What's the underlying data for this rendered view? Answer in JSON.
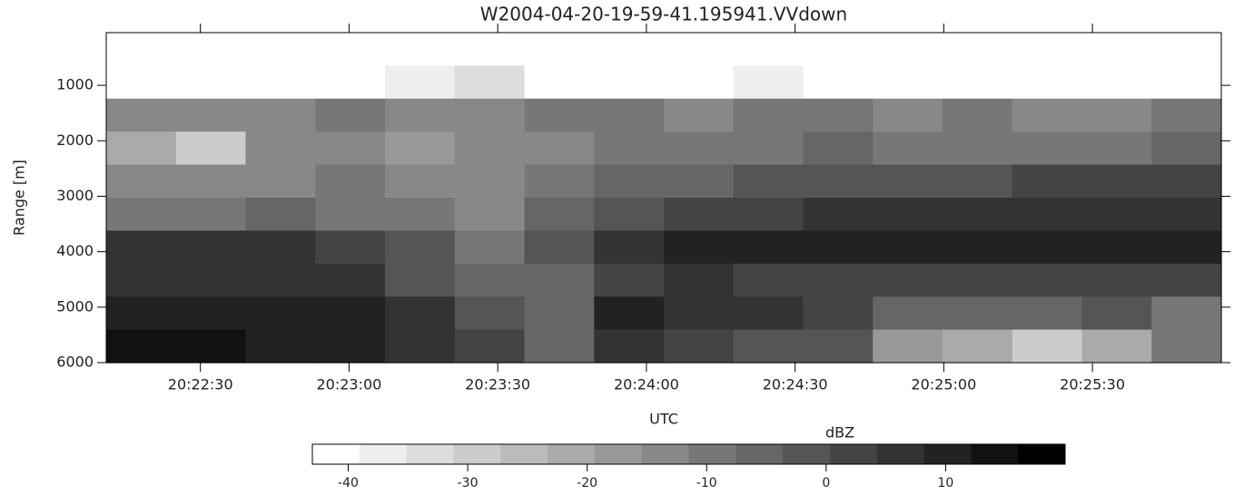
{
  "chart_data": {
    "type": "heatmap",
    "title": "W2004-04-20-19-59-41.195941.VVdown",
    "x_label": "UTC",
    "y_label": "Range [m]",
    "xlim": [
      "20:22:11",
      "20:25:56"
    ],
    "xticks": [
      "20:22:30",
      "20:23:00",
      "20:23:30",
      "20:24:00",
      "20:24:30",
      "20:25:00",
      "20:25:30"
    ],
    "ylim": [
      50,
      6000
    ],
    "y_inverted": true,
    "yticks": [
      1000,
      2000,
      3000,
      4000,
      5000,
      6000
    ],
    "z": [
      [
        -43,
        -43,
        -43,
        -43,
        -43,
        -43,
        -43,
        -43,
        -43,
        -43,
        -43,
        -43,
        -43,
        -43,
        -43,
        -43
      ],
      [
        -43,
        -43,
        -43,
        -40,
        -38,
        -35,
        -40,
        -40,
        -40,
        -38,
        -40,
        -40,
        -40,
        -40,
        -40,
        -40
      ],
      [
        -12,
        -15,
        -12,
        -10,
        -12,
        -12,
        -10,
        -10,
        -12,
        -10,
        -10,
        -12,
        -10,
        -12,
        -15,
        -10
      ],
      [
        -20,
        -30,
        -15,
        -15,
        -18,
        -15,
        -12,
        -10,
        -8,
        -8,
        -6,
        -8,
        -8,
        -8,
        -8,
        -5
      ],
      [
        -12,
        -12,
        -12,
        -10,
        -14,
        -12,
        -8,
        -6,
        -4,
        -2,
        -2,
        0,
        0,
        2,
        2,
        4
      ],
      [
        -8,
        -8,
        -6,
        -8,
        -10,
        -12,
        -6,
        -2,
        2,
        4,
        6,
        8,
        8,
        8,
        6,
        8
      ],
      [
        8,
        8,
        6,
        4,
        -2,
        -8,
        -2,
        6,
        10,
        10,
        12,
        12,
        12,
        12,
        10,
        12
      ],
      [
        8,
        8,
        8,
        6,
        0,
        -4,
        -6,
        2,
        6,
        4,
        2,
        4,
        4,
        2,
        4,
        2
      ],
      [
        12,
        12,
        10,
        10,
        6,
        -2,
        -4,
        10,
        8,
        6,
        2,
        -4,
        -6,
        -6,
        -2,
        -8
      ],
      [
        14,
        14,
        12,
        10,
        8,
        2,
        -4,
        6,
        2,
        -2,
        -2,
        -18,
        -22,
        -28,
        -20,
        -10
      ]
    ],
    "colorbar": {
      "label": "dBZ",
      "lim": [
        -43,
        20
      ],
      "ticks": [
        -40,
        -30,
        -20,
        -10,
        0,
        10
      ],
      "levels": 16
    }
  }
}
